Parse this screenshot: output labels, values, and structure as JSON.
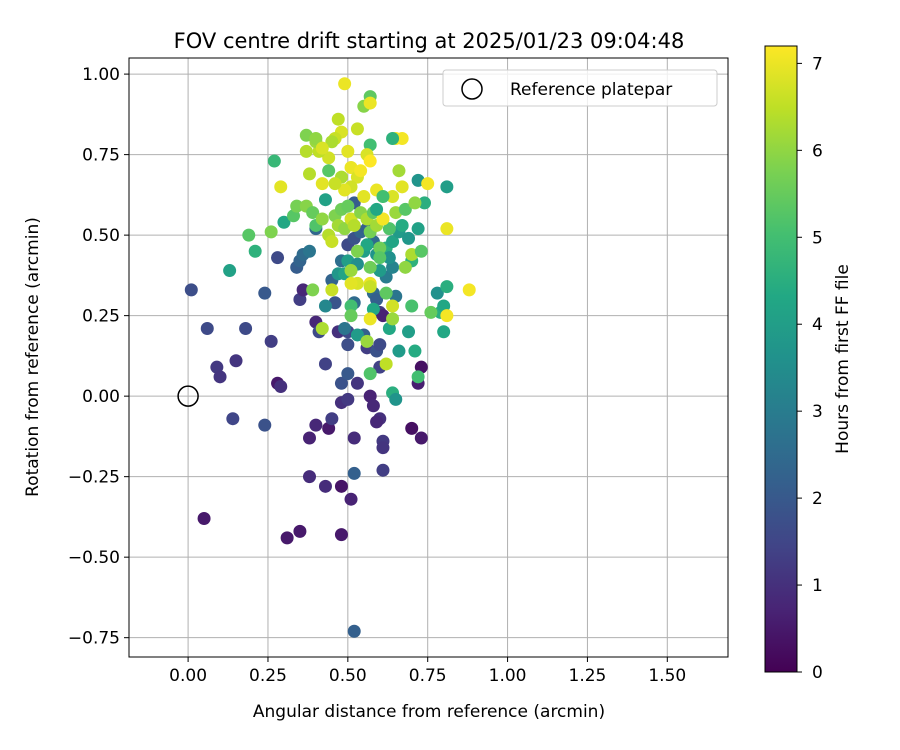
{
  "chart_data": {
    "type": "scatter",
    "title": "FOV centre drift starting at 2025/01/23 09:04:48",
    "xlabel": "Angular distance from reference (arcmin)",
    "ylabel": "Rotation from reference (arcmin)",
    "xlim": [
      -0.185,
      1.69
    ],
    "ylim": [
      -0.81,
      1.05
    ],
    "xticks": [
      "0.00",
      "0.25",
      "0.50",
      "0.75",
      "1.00",
      "1.25",
      "1.50"
    ],
    "yticks": [
      "−0.75",
      "−0.50",
      "−0.25",
      "0.00",
      "0.25",
      "0.50",
      "0.75",
      "1.00"
    ],
    "grid": true,
    "legend": {
      "placement": "top-right",
      "entries": [
        {
          "label": "Reference platepar"
        }
      ]
    },
    "reference_point": {
      "x": 0.0,
      "y": 0.0
    },
    "colorbar": {
      "label": "Hours from first FF file",
      "range": [
        0,
        7.2
      ],
      "ticks": [
        "0",
        "1",
        "2",
        "3",
        "4",
        "5",
        "6",
        "7"
      ],
      "colormap": "viridis"
    },
    "points": [
      {
        "x": 0.05,
        "y": -0.38,
        "h": 0.5
      },
      {
        "x": 0.31,
        "y": -0.44,
        "h": 0.5
      },
      {
        "x": 0.35,
        "y": -0.42,
        "h": 0.5
      },
      {
        "x": 0.48,
        "y": -0.43,
        "h": 0.5
      },
      {
        "x": 0.48,
        "y": -0.28,
        "h": 0.4
      },
      {
        "x": 0.51,
        "y": -0.32,
        "h": 0.7
      },
      {
        "x": 0.43,
        "y": -0.28,
        "h": 0.9
      },
      {
        "x": 0.38,
        "y": -0.25,
        "h": 0.9
      },
      {
        "x": 0.52,
        "y": -0.13,
        "h": 0.9
      },
      {
        "x": 0.44,
        "y": -0.1,
        "h": 0.5
      },
      {
        "x": 0.38,
        "y": -0.13,
        "h": 0.7
      },
      {
        "x": 0.45,
        "y": -0.07,
        "h": 1.3
      },
      {
        "x": 0.4,
        "y": -0.09,
        "h": 0.8
      },
      {
        "x": 0.48,
        "y": -0.02,
        "h": 1.0
      },
      {
        "x": 0.5,
        "y": -0.01,
        "h": 1.2
      },
      {
        "x": 0.57,
        "y": 0.0,
        "h": 0.7
      },
      {
        "x": 0.58,
        "y": -0.03,
        "h": 0.8
      },
      {
        "x": 0.6,
        "y": -0.07,
        "h": 1.0
      },
      {
        "x": 0.59,
        "y": -0.08,
        "h": 0.8
      },
      {
        "x": 0.61,
        "y": -0.14,
        "h": 1.2
      },
      {
        "x": 0.61,
        "y": -0.16,
        "h": 1.1
      },
      {
        "x": 0.61,
        "y": -0.23,
        "h": 1.3
      },
      {
        "x": 0.52,
        "y": -0.24,
        "h": 2.2
      },
      {
        "x": 0.52,
        "y": -0.73,
        "h": 2.2
      },
      {
        "x": 0.7,
        "y": -0.1,
        "h": 0.3
      },
      {
        "x": 0.73,
        "y": -0.13,
        "h": 0.5
      },
      {
        "x": 0.73,
        "y": 0.09,
        "h": 0.3
      },
      {
        "x": 0.72,
        "y": 0.04,
        "h": 0.6
      },
      {
        "x": 0.28,
        "y": 0.04,
        "h": 0.5
      },
      {
        "x": 0.29,
        "y": 0.03,
        "h": 1.0
      },
      {
        "x": 0.09,
        "y": 0.09,
        "h": 1.2
      },
      {
        "x": 0.1,
        "y": 0.06,
        "h": 1.1
      },
      {
        "x": 0.14,
        "y": -0.07,
        "h": 1.5
      },
      {
        "x": 0.24,
        "y": -0.09,
        "h": 1.8
      },
      {
        "x": 0.15,
        "y": 0.11,
        "h": 1.1
      },
      {
        "x": 0.06,
        "y": 0.21,
        "h": 1.6
      },
      {
        "x": 0.01,
        "y": 0.33,
        "h": 1.7
      },
      {
        "x": 0.18,
        "y": 0.21,
        "h": 1.6
      },
      {
        "x": 0.26,
        "y": 0.17,
        "h": 1.3
      },
      {
        "x": 0.24,
        "y": 0.32,
        "h": 2.0
      },
      {
        "x": 0.28,
        "y": 0.43,
        "h": 1.6
      },
      {
        "x": 0.34,
        "y": 0.4,
        "h": 2.1
      },
      {
        "x": 0.35,
        "y": 0.42,
        "h": 2.3
      },
      {
        "x": 0.35,
        "y": 0.3,
        "h": 1.3
      },
      {
        "x": 0.36,
        "y": 0.33,
        "h": 0.8
      },
      {
        "x": 0.4,
        "y": 0.23,
        "h": 0.8
      },
      {
        "x": 0.41,
        "y": 0.2,
        "h": 1.6
      },
      {
        "x": 0.43,
        "y": 0.1,
        "h": 1.4
      },
      {
        "x": 0.47,
        "y": 0.2,
        "h": 1.0
      },
      {
        "x": 0.48,
        "y": 0.04,
        "h": 1.8
      },
      {
        "x": 0.5,
        "y": 0.07,
        "h": 2.0
      },
      {
        "x": 0.5,
        "y": 0.16,
        "h": 1.7
      },
      {
        "x": 0.5,
        "y": 0.2,
        "h": 1.6
      },
      {
        "x": 0.53,
        "y": 0.04,
        "h": 1.1
      },
      {
        "x": 0.55,
        "y": 0.19,
        "h": 2.2
      },
      {
        "x": 0.56,
        "y": 0.15,
        "h": 1.3
      },
      {
        "x": 0.59,
        "y": 0.14,
        "h": 1.8
      },
      {
        "x": 0.6,
        "y": 0.26,
        "h": 1.2
      },
      {
        "x": 0.61,
        "y": 0.25,
        "h": 0.7
      },
      {
        "x": 0.6,
        "y": 0.16,
        "h": 1.6
      },
      {
        "x": 0.58,
        "y": 0.32,
        "h": 2.5
      },
      {
        "x": 0.59,
        "y": 0.3,
        "h": 2.2
      },
      {
        "x": 0.6,
        "y": 0.09,
        "h": 1.4
      },
      {
        "x": 0.52,
        "y": 0.29,
        "h": 2.5
      },
      {
        "x": 0.46,
        "y": 0.29,
        "h": 1.9
      },
      {
        "x": 0.49,
        "y": 0.21,
        "h": 2.8
      },
      {
        "x": 0.36,
        "y": 0.44,
        "h": 2.5
      },
      {
        "x": 0.38,
        "y": 0.45,
        "h": 2.8
      },
      {
        "x": 0.4,
        "y": 0.52,
        "h": 2.4
      },
      {
        "x": 0.45,
        "y": 0.36,
        "h": 2.3
      },
      {
        "x": 0.48,
        "y": 0.42,
        "h": 2.6
      },
      {
        "x": 0.5,
        "y": 0.47,
        "h": 1.6
      },
      {
        "x": 0.52,
        "y": 0.49,
        "h": 1.8
      },
      {
        "x": 0.52,
        "y": 0.6,
        "h": 2.1
      },
      {
        "x": 0.54,
        "y": 0.51,
        "h": 2.3
      },
      {
        "x": 0.56,
        "y": 0.52,
        "h": 2.2
      },
      {
        "x": 0.58,
        "y": 0.48,
        "h": 2.5
      },
      {
        "x": 0.61,
        "y": 0.44,
        "h": 2.7
      },
      {
        "x": 0.62,
        "y": 0.37,
        "h": 3.0
      },
      {
        "x": 0.64,
        "y": 0.4,
        "h": 3.2
      },
      {
        "x": 0.65,
        "y": 0.31,
        "h": 2.8
      },
      {
        "x": 0.43,
        "y": 0.28,
        "h": 3.3
      },
      {
        "x": 0.47,
        "y": 0.38,
        "h": 3.8
      },
      {
        "x": 0.5,
        "y": 0.42,
        "h": 4.0
      },
      {
        "x": 0.53,
        "y": 0.41,
        "h": 3.5
      },
      {
        "x": 0.55,
        "y": 0.45,
        "h": 4.0
      },
      {
        "x": 0.56,
        "y": 0.47,
        "h": 4.3
      },
      {
        "x": 0.59,
        "y": 0.44,
        "h": 3.7
      },
      {
        "x": 0.6,
        "y": 0.39,
        "h": 3.9
      },
      {
        "x": 0.62,
        "y": 0.46,
        "h": 4.5
      },
      {
        "x": 0.63,
        "y": 0.43,
        "h": 3.6
      },
      {
        "x": 0.64,
        "y": 0.48,
        "h": 4.2
      },
      {
        "x": 0.66,
        "y": 0.51,
        "h": 3.9
      },
      {
        "x": 0.67,
        "y": 0.53,
        "h": 4.4
      },
      {
        "x": 0.69,
        "y": 0.49,
        "h": 3.8
      },
      {
        "x": 0.7,
        "y": 0.42,
        "h": 4.6
      },
      {
        "x": 0.72,
        "y": 0.52,
        "h": 4.1
      },
      {
        "x": 0.74,
        "y": 0.6,
        "h": 4.5
      },
      {
        "x": 0.72,
        "y": 0.67,
        "h": 3.7
      },
      {
        "x": 0.78,
        "y": 0.32,
        "h": 3.6
      },
      {
        "x": 0.79,
        "y": 0.26,
        "h": 4.5
      },
      {
        "x": 0.8,
        "y": 0.2,
        "h": 4.3
      },
      {
        "x": 0.81,
        "y": 0.34,
        "h": 4.5
      },
      {
        "x": 0.81,
        "y": 0.65,
        "h": 4.0
      },
      {
        "x": 0.8,
        "y": 0.28,
        "h": 4.3
      },
      {
        "x": 0.71,
        "y": 0.14,
        "h": 4.4
      },
      {
        "x": 0.72,
        "y": 0.06,
        "h": 5.0
      },
      {
        "x": 0.64,
        "y": 0.01,
        "h": 4.5
      },
      {
        "x": 0.65,
        "y": -0.01,
        "h": 3.7
      },
      {
        "x": 0.66,
        "y": 0.14,
        "h": 3.9
      },
      {
        "x": 0.69,
        "y": 0.2,
        "h": 4.0
      },
      {
        "x": 0.7,
        "y": 0.28,
        "h": 5.1
      },
      {
        "x": 0.63,
        "y": 0.21,
        "h": 4.3
      },
      {
        "x": 0.53,
        "y": 0.19,
        "h": 3.9
      },
      {
        "x": 0.58,
        "y": 0.27,
        "h": 4.3
      },
      {
        "x": 0.51,
        "y": 0.28,
        "h": 5.0
      },
      {
        "x": 0.49,
        "y": 0.38,
        "h": 4.2
      },
      {
        "x": 0.42,
        "y": 0.21,
        "h": 6.3
      },
      {
        "x": 0.39,
        "y": 0.33,
        "h": 5.8
      },
      {
        "x": 0.45,
        "y": 0.33,
        "h": 6.6
      },
      {
        "x": 0.21,
        "y": 0.45,
        "h": 4.6
      },
      {
        "x": 0.19,
        "y": 0.5,
        "h": 5.3
      },
      {
        "x": 0.13,
        "y": 0.39,
        "h": 4.1
      },
      {
        "x": 0.26,
        "y": 0.51,
        "h": 5.8
      },
      {
        "x": 0.3,
        "y": 0.54,
        "h": 4.3
      },
      {
        "x": 0.33,
        "y": 0.56,
        "h": 5.3
      },
      {
        "x": 0.34,
        "y": 0.59,
        "h": 5.7
      },
      {
        "x": 0.37,
        "y": 0.59,
        "h": 5.9
      },
      {
        "x": 0.39,
        "y": 0.57,
        "h": 5.5
      },
      {
        "x": 0.4,
        "y": 0.53,
        "h": 5.2
      },
      {
        "x": 0.42,
        "y": 0.55,
        "h": 6.0
      },
      {
        "x": 0.43,
        "y": 0.61,
        "h": 4.1
      },
      {
        "x": 0.44,
        "y": 0.5,
        "h": 6.4
      },
      {
        "x": 0.45,
        "y": 0.48,
        "h": 6.6
      },
      {
        "x": 0.46,
        "y": 0.56,
        "h": 5.8
      },
      {
        "x": 0.47,
        "y": 0.53,
        "h": 6.2
      },
      {
        "x": 0.48,
        "y": 0.58,
        "h": 5.6
      },
      {
        "x": 0.49,
        "y": 0.52,
        "h": 6.0
      },
      {
        "x": 0.5,
        "y": 0.59,
        "h": 5.5
      },
      {
        "x": 0.51,
        "y": 0.55,
        "h": 6.7
      },
      {
        "x": 0.52,
        "y": 0.53,
        "h": 6.4
      },
      {
        "x": 0.54,
        "y": 0.57,
        "h": 5.9
      },
      {
        "x": 0.55,
        "y": 0.62,
        "h": 6.9
      },
      {
        "x": 0.56,
        "y": 0.55,
        "h": 6.3
      },
      {
        "x": 0.57,
        "y": 0.51,
        "h": 5.7
      },
      {
        "x": 0.58,
        "y": 0.57,
        "h": 5.4
      },
      {
        "x": 0.59,
        "y": 0.53,
        "h": 6.2
      },
      {
        "x": 0.6,
        "y": 0.46,
        "h": 5.6
      },
      {
        "x": 0.61,
        "y": 0.55,
        "h": 7.0
      },
      {
        "x": 0.63,
        "y": 0.52,
        "h": 5.2
      },
      {
        "x": 0.64,
        "y": 0.62,
        "h": 6.8
      },
      {
        "x": 0.65,
        "y": 0.57,
        "h": 6.1
      },
      {
        "x": 0.67,
        "y": 0.65,
        "h": 6.9
      },
      {
        "x": 0.68,
        "y": 0.4,
        "h": 6.0
      },
      {
        "x": 0.7,
        "y": 0.44,
        "h": 6.3
      },
      {
        "x": 0.73,
        "y": 0.45,
        "h": 5.3
      },
      {
        "x": 0.76,
        "y": 0.26,
        "h": 5.5
      },
      {
        "x": 0.81,
        "y": 0.52,
        "h": 7.0
      },
      {
        "x": 0.81,
        "y": 0.25,
        "h": 7.1
      },
      {
        "x": 0.88,
        "y": 0.33,
        "h": 7.1
      },
      {
        "x": 0.75,
        "y": 0.66,
        "h": 7.1
      },
      {
        "x": 0.66,
        "y": 0.7,
        "h": 6.2
      },
      {
        "x": 0.65,
        "y": 0.8,
        "h": 7.2
      },
      {
        "x": 0.67,
        "y": 0.8,
        "h": 7.1
      },
      {
        "x": 0.64,
        "y": 0.8,
        "h": 4.6
      },
      {
        "x": 0.57,
        "y": 0.78,
        "h": 5.0
      },
      {
        "x": 0.56,
        "y": 0.75,
        "h": 6.8
      },
      {
        "x": 0.57,
        "y": 0.73,
        "h": 7.2
      },
      {
        "x": 0.53,
        "y": 0.83,
        "h": 6.6
      },
      {
        "x": 0.55,
        "y": 0.9,
        "h": 5.9
      },
      {
        "x": 0.57,
        "y": 0.93,
        "h": 5.4
      },
      {
        "x": 0.57,
        "y": 0.91,
        "h": 7.0
      },
      {
        "x": 0.49,
        "y": 0.97,
        "h": 7.0
      },
      {
        "x": 0.47,
        "y": 0.86,
        "h": 6.5
      },
      {
        "x": 0.48,
        "y": 0.82,
        "h": 6.8
      },
      {
        "x": 0.46,
        "y": 0.8,
        "h": 6.6
      },
      {
        "x": 0.45,
        "y": 0.79,
        "h": 6.3
      },
      {
        "x": 0.44,
        "y": 0.74,
        "h": 6.7
      },
      {
        "x": 0.41,
        "y": 0.76,
        "h": 6.5
      },
      {
        "x": 0.4,
        "y": 0.79,
        "h": 6.1
      },
      {
        "x": 0.37,
        "y": 0.76,
        "h": 6.4
      },
      {
        "x": 0.37,
        "y": 0.81,
        "h": 5.8
      },
      {
        "x": 0.4,
        "y": 0.8,
        "h": 6.0
      },
      {
        "x": 0.42,
        "y": 0.77,
        "h": 6.8
      },
      {
        "x": 0.5,
        "y": 0.76,
        "h": 6.9
      },
      {
        "x": 0.51,
        "y": 0.71,
        "h": 7.0
      },
      {
        "x": 0.53,
        "y": 0.68,
        "h": 6.8
      },
      {
        "x": 0.54,
        "y": 0.7,
        "h": 7.1
      },
      {
        "x": 0.51,
        "y": 0.65,
        "h": 6.7
      },
      {
        "x": 0.49,
        "y": 0.64,
        "h": 6.9
      },
      {
        "x": 0.48,
        "y": 0.68,
        "h": 6.3
      },
      {
        "x": 0.46,
        "y": 0.66,
        "h": 6.6
      },
      {
        "x": 0.44,
        "y": 0.7,
        "h": 5.3
      },
      {
        "x": 0.42,
        "y": 0.66,
        "h": 6.9
      },
      {
        "x": 0.38,
        "y": 0.69,
        "h": 6.4
      },
      {
        "x": 0.29,
        "y": 0.65,
        "h": 6.9
      },
      {
        "x": 0.27,
        "y": 0.73,
        "h": 4.8
      },
      {
        "x": 0.59,
        "y": 0.64,
        "h": 7.0
      },
      {
        "x": 0.61,
        "y": 0.55,
        "h": 7.1
      },
      {
        "x": 0.57,
        "y": 0.35,
        "h": 7.0
      },
      {
        "x": 0.57,
        "y": 0.34,
        "h": 6.6
      },
      {
        "x": 0.53,
        "y": 0.35,
        "h": 6.8
      },
      {
        "x": 0.51,
        "y": 0.39,
        "h": 6.1
      },
      {
        "x": 0.53,
        "y": 0.45,
        "h": 5.8
      },
      {
        "x": 0.57,
        "y": 0.4,
        "h": 5.6
      },
      {
        "x": 0.6,
        "y": 0.43,
        "h": 5.3
      },
      {
        "x": 0.62,
        "y": 0.32,
        "h": 5.4
      },
      {
        "x": 0.64,
        "y": 0.28,
        "h": 6.7
      },
      {
        "x": 0.64,
        "y": 0.24,
        "h": 6.1
      },
      {
        "x": 0.57,
        "y": 0.24,
        "h": 7.0
      },
      {
        "x": 0.56,
        "y": 0.17,
        "h": 6.1
      },
      {
        "x": 0.57,
        "y": 0.07,
        "h": 5.2
      },
      {
        "x": 0.62,
        "y": 0.1,
        "h": 6.5
      },
      {
        "x": 0.51,
        "y": 0.25,
        "h": 5.5
      },
      {
        "x": 0.51,
        "y": 0.35,
        "h": 6.9
      },
      {
        "x": 0.61,
        "y": 0.62,
        "h": 5.0
      },
      {
        "x": 0.59,
        "y": 0.58,
        "h": 4.3
      },
      {
        "x": 0.68,
        "y": 0.58,
        "h": 5.3
      },
      {
        "x": 0.71,
        "y": 0.6,
        "h": 6.0
      }
    ]
  }
}
